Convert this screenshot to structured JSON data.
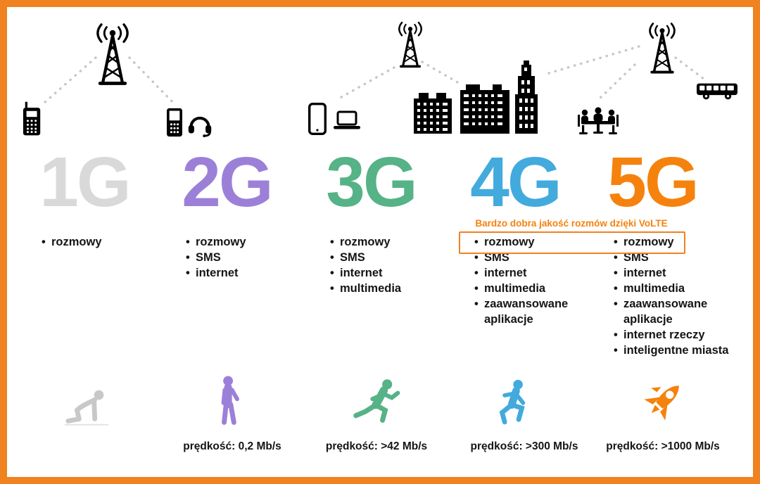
{
  "frame": {
    "border_color": "#F0821F"
  },
  "volte_note": {
    "text": "Bardzo dobra jakość rozmów dzięki VoLTE",
    "color": "#F5820D"
  },
  "scene": {
    "icons": [
      "cell-tower-icon",
      "vintage-phone-icon",
      "feature-phone-icon",
      "headphones-icon",
      "smartphone-icon",
      "laptop-icon",
      "city-buildings-icon",
      "meeting-people-icon",
      "bus-icon",
      "coverage-dotted-lines"
    ]
  },
  "generations": [
    {
      "label": "1G",
      "color": "#D9D9D9",
      "features": [
        "rozmowy"
      ],
      "pace_icon": "crawling-person-icon",
      "pace_color": "#C8C8C8"
    },
    {
      "label": "2G",
      "color": "#9C80D8",
      "features": [
        "rozmowy",
        "SMS",
        "internet"
      ],
      "speed_label": "prędkość: 0,2 Mb/s",
      "pace_icon": "walking-person-icon",
      "pace_color": "#9C80D8"
    },
    {
      "label": "3G",
      "color": "#56B287",
      "features": [
        "rozmowy",
        "SMS",
        "internet",
        "multimedia"
      ],
      "speed_label": "prędkość: >42 Mb/s",
      "pace_icon": "running-person-icon",
      "pace_color": "#56B287"
    },
    {
      "label": "4G",
      "color": "#42AADD",
      "features": [
        "rozmowy",
        "SMS",
        "internet",
        "multimedia",
        "zaawansowane aplikacje"
      ],
      "speed_label": "prędkość: >300 Mb/s",
      "pace_icon": "sprinting-person-icon",
      "pace_color": "#42AADD"
    },
    {
      "label": "5G",
      "color": "#F5820D",
      "features": [
        "rozmowy",
        "SMS",
        "internet",
        "multimedia",
        "zaawansowane aplikacje",
        "internet rzeczy",
        "inteligentne miasta"
      ],
      "speed_label": "prędkość: >1000 Mb/s",
      "pace_icon": "rocket-icon",
      "pace_color": "#F5820D"
    }
  ]
}
